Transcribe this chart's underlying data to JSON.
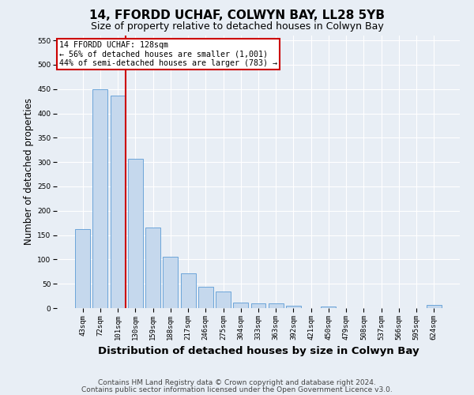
{
  "title": "14, FFORDD UCHAF, COLWYN BAY, LL28 5YB",
  "subtitle": "Size of property relative to detached houses in Colwyn Bay",
  "xlabel": "Distribution of detached houses by size in Colwyn Bay",
  "ylabel": "Number of detached properties",
  "bar_labels": [
    "43sqm",
    "72sqm",
    "101sqm",
    "130sqm",
    "159sqm",
    "188sqm",
    "217sqm",
    "246sqm",
    "275sqm",
    "304sqm",
    "333sqm",
    "363sqm",
    "392sqm",
    "421sqm",
    "450sqm",
    "479sqm",
    "508sqm",
    "537sqm",
    "566sqm",
    "595sqm",
    "624sqm"
  ],
  "bar_values": [
    162,
    449,
    436,
    307,
    165,
    106,
    71,
    44,
    34,
    11,
    9,
    9,
    5,
    0,
    3,
    0,
    0,
    0,
    0,
    0,
    6
  ],
  "bar_color": "#c5d8ed",
  "bar_edgecolor": "#5b9bd5",
  "vline_color": "#cc0000",
  "annotation_title": "14 FFORDD UCHAF: 128sqm",
  "annotation_line1": "← 56% of detached houses are smaller (1,001)",
  "annotation_line2": "44% of semi-detached houses are larger (783) →",
  "annotation_box_edgecolor": "#cc0000",
  "ylim": [
    0,
    560
  ],
  "yticks": [
    0,
    50,
    100,
    150,
    200,
    250,
    300,
    350,
    400,
    450,
    500,
    550
  ],
  "footer1": "Contains HM Land Registry data © Crown copyright and database right 2024.",
  "footer2": "Contains public sector information licensed under the Open Government Licence v3.0.",
  "bg_color": "#e8eef5",
  "plot_bg_color": "#e8eef5",
  "grid_color": "#ffffff",
  "title_fontsize": 11,
  "subtitle_fontsize": 9,
  "xlabel_fontsize": 9.5,
  "ylabel_fontsize": 8.5,
  "tick_fontsize": 6.5,
  "footer_fontsize": 6.5
}
